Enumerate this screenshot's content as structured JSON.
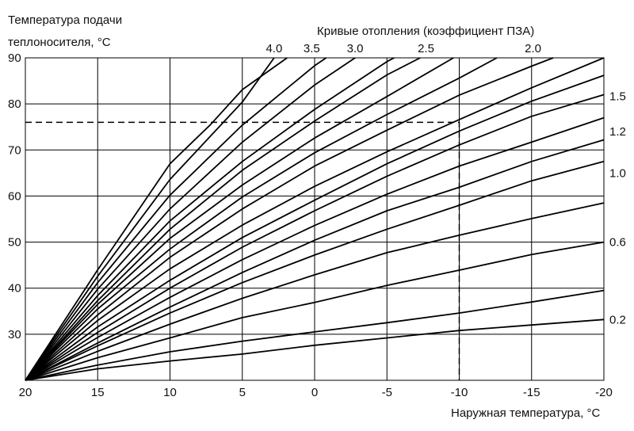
{
  "chart_data": {
    "type": "line",
    "title": "Кривые отопления (коэффициент ПЗА)",
    "ylabel_lines": [
      "Температура подачи",
      "теплоносителя, °C"
    ],
    "xlabel": "Наружная температура, °C",
    "x_ticks": [
      20,
      15,
      10,
      5,
      0,
      -5,
      -10,
      -15,
      -20
    ],
    "y_ticks": [
      30,
      40,
      50,
      60,
      70,
      80,
      90
    ],
    "y_tick_labels": [
      "30",
      "40",
      "50",
      "60",
      "70",
      "80",
      "90"
    ],
    "x_range": [
      20,
      -20
    ],
    "y_range": [
      20,
      90
    ],
    "grid": true,
    "top_curve_labels": [
      {
        "text": "4.0",
        "x": 2.8
      },
      {
        "text": "3.5",
        "x": 0.2
      },
      {
        "text": "3.0",
        "x": -2.8
      },
      {
        "text": "2.5",
        "x": -7.7
      },
      {
        "text": "2.0",
        "x": -15.1
      }
    ],
    "right_curve_labels": [
      {
        "text": "1.5",
        "y": 81.7
      },
      {
        "text": "1.2",
        "y": 74.0
      },
      {
        "text": "1.0",
        "y": 65.0
      },
      {
        "text": "0.6",
        "y": 50.0
      },
      {
        "text": "0.2",
        "y": 33.2
      }
    ],
    "reference_line": {
      "x": -10,
      "y": 76
    },
    "series": [
      {
        "points": [
          [
            20,
            20
          ],
          [
            15,
            27.5
          ],
          [
            10,
            34.6
          ],
          [
            5,
            41.2
          ],
          [
            0,
            47.2
          ],
          [
            -5,
            52.8
          ],
          [
            -10,
            58.0
          ],
          [
            -15,
            63.3
          ],
          [
            -20,
            67.5
          ]
        ]
      },
      {
        "points": [
          [
            20,
            20
          ],
          [
            15,
            23.3
          ],
          [
            10,
            26.2
          ],
          [
            5,
            28.5
          ],
          [
            0,
            30.5
          ],
          [
            -5,
            32.5
          ],
          [
            -10,
            34.6
          ],
          [
            -15,
            37.0
          ],
          [
            -20,
            39.5
          ]
        ]
      },
      {
        "points": [
          [
            20,
            20
          ],
          [
            15,
            42.6
          ],
          [
            10,
            63.6
          ],
          [
            5,
            80.4
          ],
          [
            2.8,
            90.0
          ]
        ]
      },
      {
        "points": [
          [
            20,
            20
          ],
          [
            15,
            36.5
          ],
          [
            10,
            50.8
          ],
          [
            5,
            62.4
          ],
          [
            0,
            72.6
          ],
          [
            -5,
            81.6
          ],
          [
            -9.6,
            90.0
          ]
        ]
      },
      {
        "points": [
          [
            20,
            20
          ],
          [
            15,
            22.5
          ],
          [
            10,
            24.2
          ],
          [
            5,
            25.7
          ],
          [
            0,
            27.6
          ],
          [
            -5,
            29.2
          ],
          [
            -10,
            30.8
          ],
          [
            -15,
            32.0
          ],
          [
            -20,
            33.2
          ]
        ]
      },
      {
        "points": [
          [
            20,
            20
          ],
          [
            15,
            33.0
          ],
          [
            10,
            44.2
          ],
          [
            5,
            53.7
          ],
          [
            0,
            62.1
          ],
          [
            -5,
            69.6
          ],
          [
            -10,
            76.6
          ],
          [
            -15,
            83.5
          ],
          [
            -20,
            90.0
          ]
        ]
      },
      {
        "points": [
          [
            20,
            20
          ],
          [
            15,
            38.4
          ],
          [
            10,
            54.6
          ],
          [
            5,
            67.5
          ],
          [
            0,
            78.8
          ],
          [
            -5,
            89.2
          ],
          [
            -5.5,
            90.0
          ]
        ]
      },
      {
        "points": [
          [
            20,
            20
          ],
          [
            15,
            29.3
          ],
          [
            10,
            38.0
          ],
          [
            5,
            46.2
          ],
          [
            0,
            53.6
          ],
          [
            -5,
            60.4
          ],
          [
            -10,
            66.5
          ],
          [
            -15,
            71.7
          ],
          [
            -20,
            77.0
          ]
        ]
      },
      {
        "points": [
          [
            20,
            20
          ],
          [
            15,
            26.3
          ],
          [
            10,
            32.2
          ],
          [
            5,
            37.8
          ],
          [
            0,
            42.9
          ],
          [
            -5,
            47.7
          ],
          [
            -10,
            51.5
          ],
          [
            -15,
            55.1
          ],
          [
            -20,
            58.5
          ]
        ]
      },
      {
        "points": [
          [
            20,
            20
          ],
          [
            15,
            34.2
          ],
          [
            10,
            46.7
          ],
          [
            5,
            57.2
          ],
          [
            0,
            66.5
          ],
          [
            -5,
            74.3
          ],
          [
            -10,
            81.9
          ],
          [
            -15,
            88.2
          ],
          [
            -16.5,
            90.0
          ]
        ]
      },
      {
        "points": [
          [
            20,
            20
          ],
          [
            15,
            41.2
          ],
          [
            10,
            60.2
          ],
          [
            5,
            75.4
          ],
          [
            0,
            88.3
          ],
          [
            -0.8,
            90.0
          ]
        ]
      },
      {
        "points": [
          [
            20,
            20
          ],
          [
            15,
            30.4
          ],
          [
            10,
            40.0
          ],
          [
            5,
            48.9
          ],
          [
            0,
            56.8
          ],
          [
            -5,
            64.3
          ],
          [
            -10,
            71.1
          ],
          [
            -15,
            77.3
          ],
          [
            -20,
            82.0
          ]
        ]
      },
      {
        "points": [
          [
            20,
            20
          ],
          [
            15,
            44.0
          ],
          [
            10,
            67.0
          ],
          [
            7.2,
            75.5
          ],
          [
            5,
            83.1
          ],
          [
            1.9,
            90.0
          ]
        ]
      },
      {
        "points": [
          [
            20,
            20
          ],
          [
            15,
            24.9
          ],
          [
            10,
            29.2
          ],
          [
            5,
            33.6
          ],
          [
            0,
            36.9
          ],
          [
            -5,
            40.6
          ],
          [
            -10,
            43.9
          ],
          [
            -15,
            47.3
          ],
          [
            -20,
            50.0
          ]
        ]
      },
      {
        "points": [
          [
            20,
            20
          ],
          [
            15,
            39.8
          ],
          [
            10,
            57.2
          ],
          [
            5,
            71.7
          ],
          [
            0,
            84.1
          ],
          [
            -2.8,
            90.0
          ]
        ]
      },
      {
        "points": [
          [
            20,
            20
          ],
          [
            15,
            35.5
          ],
          [
            10,
            48.5
          ],
          [
            5,
            59.8
          ],
          [
            0,
            69.4
          ],
          [
            -5,
            77.7
          ],
          [
            -10,
            85.6
          ],
          [
            -12.6,
            90.0
          ]
        ]
      },
      {
        "points": [
          [
            20,
            20
          ],
          [
            15,
            31.6
          ],
          [
            10,
            41.7
          ],
          [
            5,
            51.0
          ],
          [
            0,
            59.1
          ],
          [
            -5,
            67.0
          ],
          [
            -10,
            74.1
          ],
          [
            -15,
            80.6
          ],
          [
            -20,
            86.2
          ]
        ]
      },
      {
        "points": [
          [
            20,
            20
          ],
          [
            15,
            28.1
          ],
          [
            10,
            35.9
          ],
          [
            5,
            43.4
          ],
          [
            0,
            50.4
          ],
          [
            -5,
            56.8
          ],
          [
            -10,
            61.9
          ],
          [
            -15,
            67.5
          ],
          [
            -20,
            72.2
          ]
        ]
      },
      {
        "points": [
          [
            20,
            20
          ],
          [
            15,
            37.3
          ],
          [
            10,
            52.8
          ],
          [
            5,
            65.6
          ],
          [
            0,
            76.3
          ],
          [
            -5,
            86.3
          ],
          [
            -7.3,
            90.0
          ]
        ]
      }
    ]
  }
}
